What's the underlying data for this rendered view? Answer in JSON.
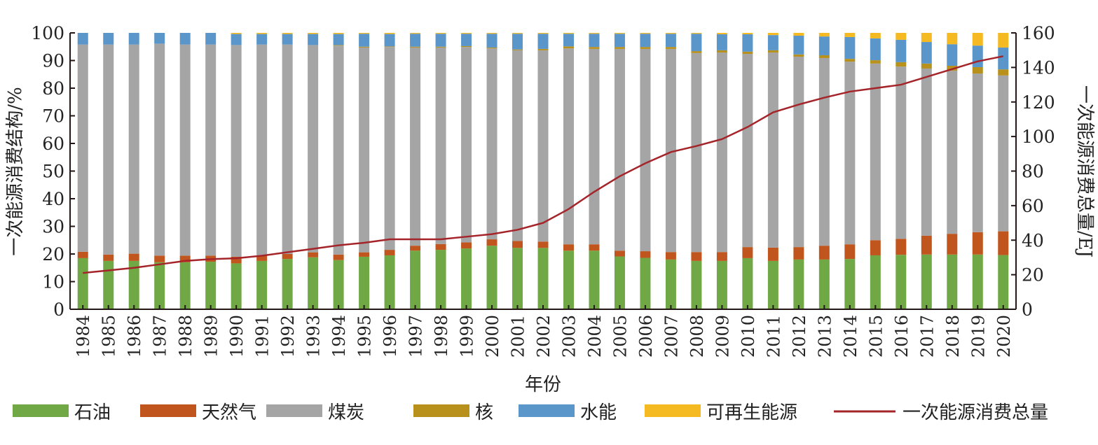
{
  "chart_data": {
    "type": "bar",
    "stacked": true,
    "title": "",
    "xlabel": "年份",
    "ylabel": "一次能源消费结构/%",
    "y2label": "一次能源消费总量/EJ",
    "ylim": [
      0,
      100
    ],
    "y2lim": [
      0,
      160
    ],
    "yticks": [
      0,
      10,
      20,
      30,
      40,
      50,
      60,
      70,
      80,
      90,
      100
    ],
    "y2ticks": [
      0,
      20,
      40,
      60,
      80,
      100,
      120,
      140,
      160
    ],
    "legend_position": "bottom",
    "categories": [
      "1984",
      "1985",
      "1986",
      "1987",
      "1988",
      "1989",
      "1990",
      "1991",
      "1992",
      "1993",
      "1994",
      "1995",
      "1996",
      "1997",
      "1998",
      "1999",
      "2000",
      "2001",
      "2002",
      "2003",
      "2004",
      "2005",
      "2006",
      "2007",
      "2008",
      "2009",
      "2010",
      "2011",
      "2012",
      "2013",
      "2014",
      "2015",
      "2016",
      "2017",
      "2018",
      "2019",
      "2020"
    ],
    "series": [
      {
        "name": "石油",
        "color": "#70a845",
        "values": [
          18.5,
          17.5,
          17.5,
          17.0,
          17.0,
          17.2,
          16.6,
          17.5,
          18.2,
          18.8,
          17.8,
          19.0,
          19.5,
          21.2,
          21.5,
          22.0,
          23.0,
          22.2,
          22.2,
          21.2,
          21.2,
          19.1,
          18.6,
          18.0,
          17.5,
          17.5,
          18.5,
          17.5,
          18.0,
          18.0,
          18.2,
          19.5,
          19.7,
          19.8,
          19.8,
          19.8,
          19.6
        ]
      },
      {
        "name": "天然气",
        "color": "#c0561e",
        "values": [
          2.3,
          2.3,
          2.6,
          2.4,
          2.4,
          2.2,
          2.4,
          1.9,
          1.8,
          1.8,
          2.0,
          1.6,
          2.0,
          1.8,
          2.1,
          2.2,
          2.3,
          2.5,
          2.3,
          2.3,
          2.3,
          2.1,
          2.4,
          2.7,
          3.2,
          3.2,
          4.0,
          4.8,
          4.5,
          5.0,
          5.3,
          5.5,
          5.8,
          6.8,
          7.5,
          8.1,
          8.6
        ]
      },
      {
        "name": "煤炭",
        "color": "#a5a5a5",
        "values": [
          75.0,
          76.0,
          75.7,
          76.7,
          76.4,
          76.4,
          76.6,
          76.4,
          75.8,
          75.0,
          75.6,
          74.1,
          73.4,
          71.7,
          71.1,
          70.7,
          69.1,
          69.0,
          69.2,
          70.9,
          70.7,
          73.0,
          73.2,
          73.5,
          72.0,
          72.2,
          69.9,
          70.6,
          68.9,
          67.9,
          66.1,
          63.9,
          62.3,
          60.5,
          59.0,
          57.4,
          56.4
        ]
      },
      {
        "name": "核",
        "color": "#b8901c",
        "values": [
          0,
          0,
          0,
          0,
          0,
          0,
          0,
          0,
          0,
          0,
          0.2,
          0.3,
          0.2,
          0.3,
          0.3,
          0.3,
          0.3,
          0.3,
          0.5,
          0.7,
          0.7,
          0.7,
          0.7,
          0.7,
          0.7,
          0.8,
          0.8,
          0.8,
          0.8,
          1.0,
          1.0,
          1.2,
          1.6,
          1.8,
          1.8,
          2.3,
          2.2
        ]
      },
      {
        "name": "水能",
        "color": "#5a96ca",
        "values": [
          4.2,
          4.2,
          4.2,
          3.9,
          4.2,
          4.2,
          4.0,
          3.8,
          3.8,
          4.0,
          4.0,
          4.7,
          4.5,
          4.7,
          4.7,
          4.5,
          5.0,
          5.7,
          5.5,
          4.6,
          4.8,
          4.8,
          4.8,
          4.8,
          6.3,
          5.8,
          6.3,
          5.5,
          6.8,
          6.8,
          7.9,
          7.9,
          8.1,
          7.8,
          7.8,
          7.8,
          7.9
        ]
      },
      {
        "name": "可再生能源",
        "color": "#f5b921",
        "values": [
          0,
          0,
          0,
          0,
          0,
          0,
          0.4,
          0.4,
          0.4,
          0.4,
          0.4,
          0.3,
          0.4,
          0.3,
          0.3,
          0.3,
          0.3,
          0.3,
          0.3,
          0.3,
          0.3,
          0.3,
          0.3,
          0.3,
          0.3,
          0.5,
          0.5,
          0.8,
          1.0,
          1.3,
          1.5,
          2.0,
          2.5,
          3.3,
          4.1,
          4.6,
          5.3
        ]
      }
    ],
    "line_series": {
      "name": "一次能源消费总量",
      "color": "#a5242a",
      "axis": "right",
      "values": [
        21,
        22.5,
        24,
        26,
        28,
        29,
        29.5,
        31,
        33,
        35,
        37,
        38.5,
        40.5,
        40.5,
        40.5,
        42,
        43.5,
        46,
        50,
        58,
        68,
        77,
        84.5,
        91,
        94.5,
        98.5,
        105.5,
        114,
        118.5,
        122.5,
        126,
        128,
        130,
        134.5,
        139,
        143.5,
        146.5
      ]
    }
  }
}
